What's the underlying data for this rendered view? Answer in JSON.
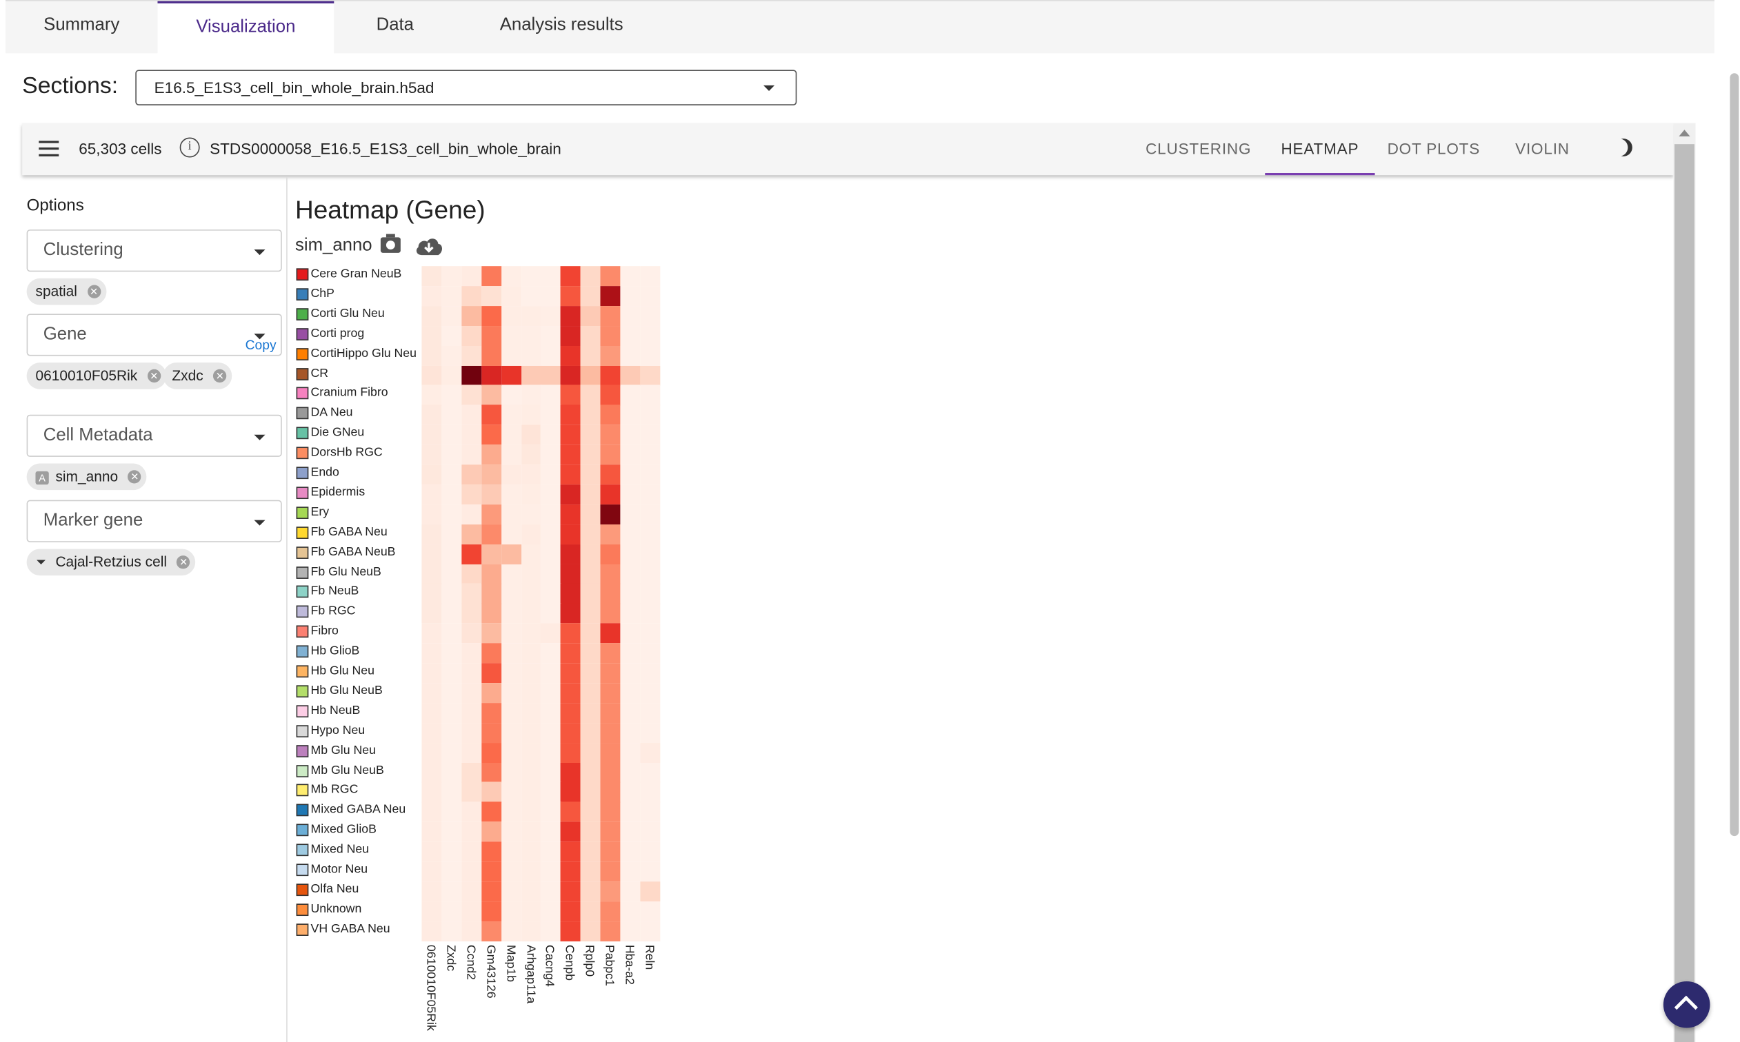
{
  "tabs": [
    "Summary",
    "Visualization",
    "Data",
    "Analysis results"
  ],
  "active_tab": "Visualization",
  "sections": {
    "label": "Sections:",
    "value": "E16.5_E1S3_cell_bin_whole_brain.h5ad"
  },
  "toolbar": {
    "cells": "65,303 cells",
    "dataset": "STDS0000058_E16.5_E1S3_cell_bin_whole_brain",
    "view_tabs": [
      "CLUSTERING",
      "HEATMAP",
      "DOT PLOTS",
      "VIOLIN"
    ],
    "active_view": "HEATMAP"
  },
  "sidebar": {
    "options_label": "Options",
    "clustering": {
      "label": "Clustering",
      "chips": [
        "spatial"
      ]
    },
    "gene": {
      "label": "Gene",
      "copy": "Copy",
      "chips": [
        "0610010F05Rik",
        "Zxdc"
      ]
    },
    "cell_metadata": {
      "label": "Cell Metadata",
      "chip_prefix": "A",
      "chips": [
        "sim_anno"
      ]
    },
    "marker_gene": {
      "label": "Marker gene",
      "chips": [
        "Cajal-Retzius cell"
      ]
    }
  },
  "heatmap": {
    "title": "Heatmap (Gene)",
    "subtitle": "sim_anno"
  },
  "chart_data": {
    "type": "heatmap",
    "title": "Heatmap (Gene)",
    "group_label": "sim_anno",
    "columns": [
      "0610010F05Rik",
      "Zxdc",
      "Ccnd2",
      "Gm43126",
      "Map1b",
      "Arhgap11a",
      "Cacng4",
      "Cenpb",
      "Rplp0",
      "Pabpc1",
      "Hba-a2",
      "Reln"
    ],
    "rows": [
      {
        "name": "Cere Gran NeuB",
        "color": "#e41a1c"
      },
      {
        "name": "ChP",
        "color": "#377eb8"
      },
      {
        "name": "Corti Glu Neu",
        "color": "#4daf4a"
      },
      {
        "name": "Corti prog",
        "color": "#984ea3"
      },
      {
        "name": "CortiHippo Glu Neu",
        "color": "#ff7f00"
      },
      {
        "name": "CR",
        "color": "#a65628"
      },
      {
        "name": "Cranium Fibro",
        "color": "#f781bf"
      },
      {
        "name": "DA Neu",
        "color": "#999999"
      },
      {
        "name": "Die GNeu",
        "color": "#66c2a5"
      },
      {
        "name": "DorsHb RGC",
        "color": "#fc8d62"
      },
      {
        "name": "Endo",
        "color": "#8da0cb"
      },
      {
        "name": "Epidermis",
        "color": "#e78ac3"
      },
      {
        "name": "Ery",
        "color": "#a6d854"
      },
      {
        "name": "Fb GABA Neu",
        "color": "#ffd92f"
      },
      {
        "name": "Fb GABA NeuB",
        "color": "#e5c494"
      },
      {
        "name": "Fb Glu NeuB",
        "color": "#b3b3b3"
      },
      {
        "name": "Fb NeuB",
        "color": "#8dd3c7"
      },
      {
        "name": "Fb RGC",
        "color": "#bebada"
      },
      {
        "name": "Fibro",
        "color": "#fb8072"
      },
      {
        "name": "Hb GlioB",
        "color": "#80b1d3"
      },
      {
        "name": "Hb Glu Neu",
        "color": "#fdb462"
      },
      {
        "name": "Hb Glu NeuB",
        "color": "#b3de69"
      },
      {
        "name": "Hb NeuB",
        "color": "#fccde5"
      },
      {
        "name": "Hypo Neu",
        "color": "#d9d9d9"
      },
      {
        "name": "Mb Glu Neu",
        "color": "#bc80bd"
      },
      {
        "name": "Mb Glu NeuB",
        "color": "#ccebc5"
      },
      {
        "name": "Mb RGC",
        "color": "#ffed6f"
      },
      {
        "name": "Mixed GABA Neu",
        "color": "#1f78b4"
      },
      {
        "name": "Mixed GlioB",
        "color": "#6baed6"
      },
      {
        "name": "Mixed Neu",
        "color": "#9ecae1"
      },
      {
        "name": "Motor Neu",
        "color": "#c6dbef"
      },
      {
        "name": "Olfa Neu",
        "color": "#e6550d"
      },
      {
        "name": "Unknown",
        "color": "#fd8d3c"
      },
      {
        "name": "VH GABA Neu",
        "color": "#fdae6b"
      }
    ],
    "values": [
      [
        0.08,
        0.04,
        0.06,
        0.45,
        0.04,
        0.03,
        0.03,
        0.6,
        0.15,
        0.4,
        0.03,
        0.03
      ],
      [
        0.06,
        0.04,
        0.15,
        0.12,
        0.05,
        0.03,
        0.03,
        0.55,
        0.15,
        0.85,
        0.03,
        0.03
      ],
      [
        0.08,
        0.04,
        0.25,
        0.5,
        0.05,
        0.05,
        0.04,
        0.7,
        0.2,
        0.4,
        0.03,
        0.03
      ],
      [
        0.08,
        0.03,
        0.15,
        0.45,
        0.04,
        0.04,
        0.03,
        0.7,
        0.15,
        0.4,
        0.03,
        0.03
      ],
      [
        0.08,
        0.04,
        0.12,
        0.45,
        0.04,
        0.04,
        0.03,
        0.65,
        0.15,
        0.35,
        0.03,
        0.03
      ],
      [
        0.1,
        0.05,
        0.98,
        0.7,
        0.65,
        0.2,
        0.2,
        0.7,
        0.25,
        0.6,
        0.2,
        0.15
      ],
      [
        0.05,
        0.03,
        0.12,
        0.25,
        0.03,
        0.04,
        0.03,
        0.55,
        0.15,
        0.55,
        0.03,
        0.03
      ],
      [
        0.07,
        0.03,
        0.06,
        0.55,
        0.04,
        0.05,
        0.03,
        0.6,
        0.15,
        0.45,
        0.03,
        0.03
      ],
      [
        0.07,
        0.03,
        0.06,
        0.5,
        0.04,
        0.1,
        0.03,
        0.6,
        0.15,
        0.4,
        0.03,
        0.03
      ],
      [
        0.07,
        0.03,
        0.06,
        0.3,
        0.04,
        0.08,
        0.03,
        0.6,
        0.15,
        0.4,
        0.03,
        0.03
      ],
      [
        0.08,
        0.03,
        0.2,
        0.25,
        0.06,
        0.06,
        0.03,
        0.6,
        0.15,
        0.55,
        0.03,
        0.03
      ],
      [
        0.06,
        0.03,
        0.15,
        0.2,
        0.04,
        0.05,
        0.03,
        0.7,
        0.15,
        0.65,
        0.03,
        0.03
      ],
      [
        0.06,
        0.03,
        0.06,
        0.35,
        0.04,
        0.04,
        0.03,
        0.65,
        0.15,
        0.95,
        0.03,
        0.03
      ],
      [
        0.07,
        0.03,
        0.25,
        0.4,
        0.04,
        0.06,
        0.03,
        0.65,
        0.15,
        0.35,
        0.03,
        0.03
      ],
      [
        0.07,
        0.03,
        0.6,
        0.25,
        0.25,
        0.05,
        0.03,
        0.7,
        0.15,
        0.45,
        0.03,
        0.03
      ],
      [
        0.07,
        0.03,
        0.15,
        0.3,
        0.04,
        0.05,
        0.03,
        0.7,
        0.15,
        0.4,
        0.03,
        0.03
      ],
      [
        0.07,
        0.03,
        0.12,
        0.3,
        0.04,
        0.05,
        0.03,
        0.7,
        0.15,
        0.4,
        0.03,
        0.03
      ],
      [
        0.07,
        0.03,
        0.12,
        0.3,
        0.04,
        0.05,
        0.03,
        0.7,
        0.15,
        0.4,
        0.03,
        0.03
      ],
      [
        0.06,
        0.03,
        0.1,
        0.25,
        0.04,
        0.05,
        0.06,
        0.55,
        0.15,
        0.65,
        0.03,
        0.03
      ],
      [
        0.06,
        0.03,
        0.06,
        0.45,
        0.04,
        0.05,
        0.03,
        0.55,
        0.15,
        0.4,
        0.03,
        0.03
      ],
      [
        0.06,
        0.03,
        0.06,
        0.55,
        0.04,
        0.05,
        0.03,
        0.55,
        0.15,
        0.4,
        0.03,
        0.03
      ],
      [
        0.06,
        0.03,
        0.06,
        0.3,
        0.04,
        0.05,
        0.03,
        0.55,
        0.15,
        0.4,
        0.03,
        0.03
      ],
      [
        0.06,
        0.03,
        0.06,
        0.45,
        0.04,
        0.05,
        0.03,
        0.55,
        0.15,
        0.4,
        0.03,
        0.03
      ],
      [
        0.06,
        0.03,
        0.06,
        0.45,
        0.04,
        0.05,
        0.03,
        0.55,
        0.15,
        0.4,
        0.03,
        0.03
      ],
      [
        0.06,
        0.03,
        0.06,
        0.5,
        0.04,
        0.05,
        0.03,
        0.55,
        0.15,
        0.4,
        0.03,
        0.06
      ],
      [
        0.06,
        0.03,
        0.12,
        0.45,
        0.04,
        0.05,
        0.03,
        0.65,
        0.15,
        0.4,
        0.03,
        0.03
      ],
      [
        0.06,
        0.03,
        0.12,
        0.2,
        0.04,
        0.05,
        0.03,
        0.65,
        0.15,
        0.4,
        0.03,
        0.03
      ],
      [
        0.06,
        0.03,
        0.06,
        0.5,
        0.04,
        0.05,
        0.03,
        0.55,
        0.15,
        0.4,
        0.03,
        0.03
      ],
      [
        0.06,
        0.03,
        0.06,
        0.3,
        0.04,
        0.05,
        0.03,
        0.65,
        0.15,
        0.4,
        0.03,
        0.03
      ],
      [
        0.06,
        0.03,
        0.06,
        0.5,
        0.04,
        0.05,
        0.03,
        0.6,
        0.15,
        0.4,
        0.03,
        0.03
      ],
      [
        0.06,
        0.03,
        0.06,
        0.5,
        0.04,
        0.05,
        0.03,
        0.6,
        0.15,
        0.4,
        0.03,
        0.03
      ],
      [
        0.06,
        0.03,
        0.06,
        0.5,
        0.04,
        0.05,
        0.03,
        0.6,
        0.15,
        0.35,
        0.03,
        0.15
      ],
      [
        0.06,
        0.03,
        0.06,
        0.5,
        0.04,
        0.05,
        0.03,
        0.6,
        0.15,
        0.4,
        0.03,
        0.03
      ],
      [
        0.06,
        0.03,
        0.06,
        0.4,
        0.04,
        0.05,
        0.03,
        0.6,
        0.15,
        0.4,
        0.03,
        0.03
      ]
    ]
  }
}
